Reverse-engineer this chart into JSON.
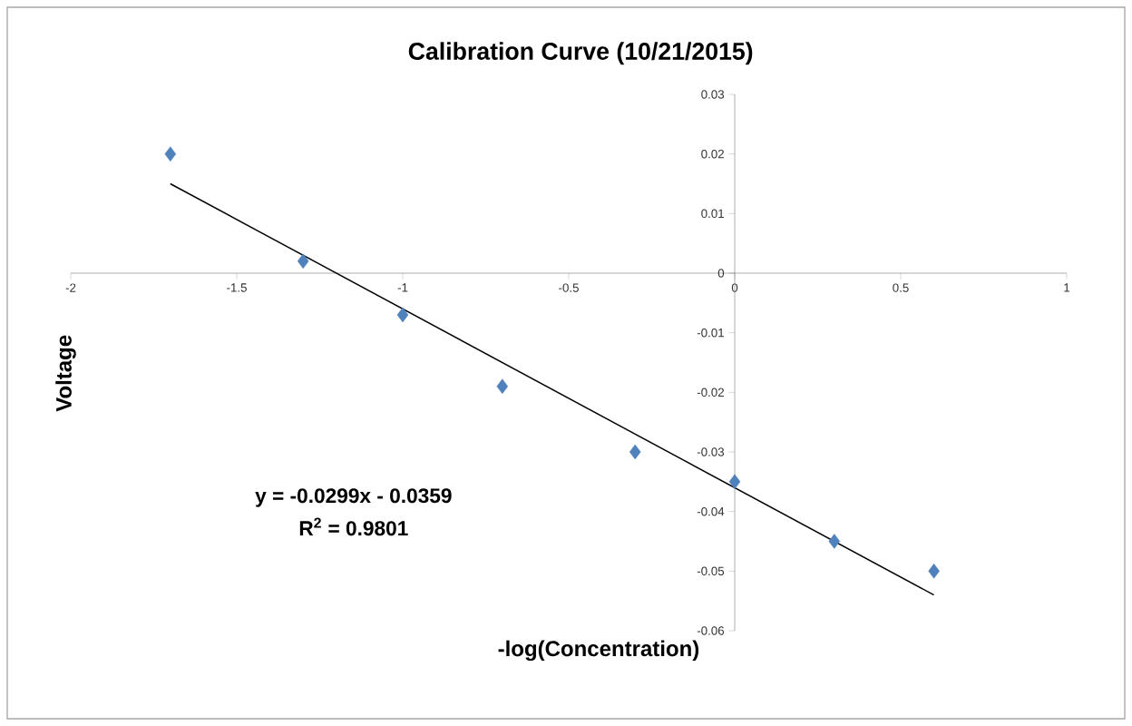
{
  "chart_data": {
    "type": "scatter",
    "title": "Calibration Curve (10/21/2015)",
    "xlabel": "-log(Concentration)",
    "ylabel": "Voltage",
    "annotations": [
      "y = -0.0299x - 0.0359",
      "R$^{2}$ = 0.9801"
    ],
    "xlim": [
      -2,
      1
    ],
    "xticks": [
      -2,
      -1.5,
      -1,
      -0.5,
      0,
      0.5,
      1
    ],
    "ylim": [
      -0.06,
      0.03
    ],
    "yticks": [
      -0.06,
      -0.05,
      -0.04,
      -0.03,
      -0.02,
      -0.01,
      0,
      0.01,
      0.02,
      0.03
    ],
    "grid": false,
    "series": [
      {
        "color": "#4f81bd",
        "marker": "diamond",
        "x": [
          -1.7,
          -1.3,
          -1.0,
          -0.7,
          -0.3,
          0,
          0.3,
          0.6
        ],
        "values": [
          0.02,
          0.002,
          -0.007,
          -0.019,
          -0.03,
          -0.035,
          -0.045,
          -0.05
        ]
      },
      {
        "type": "line",
        "color": "#000000",
        "line_style": "solid",
        "marker": "none",
        "x": [
          -1.7,
          0.6
        ],
        "values": [
          0.015,
          -0.054
        ]
      }
    ]
  }
}
